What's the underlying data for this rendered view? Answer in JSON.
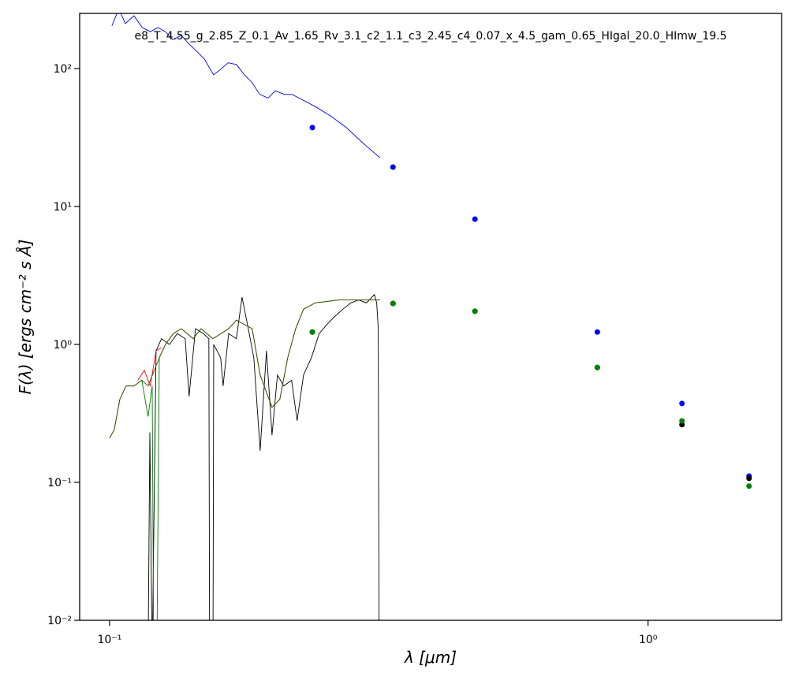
{
  "chart_data": {
    "type": "line",
    "title": "e8_T_4.55_g_2.85_Z_0.1_Av_1.65_Rv_3.1_c2_1.1_c3_2.45_c4_0.07_x_4.5_gam_0.65_HIgal_20.0_HImw_19.5",
    "x_label": "λ [μm]",
    "y_label": "F(λ) [ergs cm⁻² s Å]",
    "xscale": "log",
    "yscale": "log",
    "xlim": [
      0.088,
      1.77
    ],
    "ylim": [
      0.01,
      251
    ],
    "xticks": [
      {
        "value": 0.1,
        "label": "10⁻¹"
      },
      {
        "value": 1,
        "label": "10⁰"
      }
    ],
    "yticks": [
      {
        "value": 0.01,
        "label": "10⁻²"
      },
      {
        "value": 0.1,
        "label": "10⁻¹"
      },
      {
        "value": 1,
        "label": "10⁰"
      },
      {
        "value": 10,
        "label": "10¹"
      },
      {
        "value": 100,
        "label": "10²"
      }
    ],
    "series": [
      {
        "type": "line",
        "color": "#0000ff",
        "x": [
          0.101,
          0.104,
          0.107,
          0.111,
          0.115,
          0.119,
          0.123,
          0.127,
          0.131,
          0.136,
          0.14,
          0.145,
          0.15,
          0.156,
          0.161,
          0.166,
          0.172,
          0.178,
          0.184,
          0.19,
          0.197,
          0.203,
          0.211,
          0.218,
          0.225,
          0.241,
          0.258,
          0.276,
          0.295,
          0.318
        ],
        "values": [
          204,
          270,
          212,
          241,
          198,
          185,
          198,
          185,
          162,
          174,
          152,
          134,
          117,
          90,
          99,
          110,
          107,
          90,
          79,
          65,
          61,
          69,
          65,
          65,
          61,
          53,
          45,
          37,
          29,
          22.5
        ]
      },
      {
        "type": "line",
        "color": "#000000",
        "x": [
          0.1179,
          0.1188,
          0.12,
          0.122,
          0.1249,
          0.1292,
          0.1336,
          0.1382,
          0.1405,
          0.1444,
          0.1493,
          0.1529,
          0.1534,
          0.1556,
          0.1561,
          0.1608,
          0.1625,
          0.1664,
          0.172,
          0.1762,
          0.181,
          0.1853,
          0.1904,
          0.1956,
          0.2003,
          0.205,
          0.2106,
          0.2178,
          0.223,
          0.2292,
          0.237,
          0.2451,
          0.2535,
          0.2622,
          0.2712,
          0.2805,
          0.2901,
          0.3,
          0.3103,
          0.3134,
          0.3155,
          0.3166
        ],
        "values": [
          0.005,
          0.23,
          0.005,
          0.9,
          1.1,
          1.0,
          1.2,
          1.1,
          0.42,
          1.3,
          1.2,
          1.1,
          0.005,
          0.005,
          1.0,
          0.8,
          0.5,
          1.2,
          1.1,
          2.2,
          1.3,
          0.8,
          0.17,
          0.9,
          0.22,
          0.6,
          0.5,
          0.55,
          0.28,
          0.6,
          0.8,
          1.2,
          1.4,
          1.6,
          1.8,
          2.0,
          2.1,
          2.0,
          2.3,
          2.0,
          1.3,
          0.005
        ]
      },
      {
        "type": "line",
        "color": "#ff0000",
        "x": [
          0.1129,
          0.116,
          0.119,
          0.122,
          0.1249
        ],
        "values": [
          0.55,
          0.65,
          0.5,
          0.9,
          0.95
        ]
      },
      {
        "type": "line",
        "color": "#008000",
        "x": [
          0.1,
          0.102,
          0.1045,
          0.1073,
          0.1111,
          0.1148,
          0.1179,
          0.12,
          0.1208,
          0.1224,
          0.1237,
          0.127,
          0.1314,
          0.1359,
          0.143,
          0.1479,
          0.1556,
          0.1664,
          0.172,
          0.184,
          0.1904,
          0.2003,
          0.2071,
          0.2142,
          0.2216,
          0.2292,
          0.241,
          0.2667,
          0.318
        ],
        "values": [
          0.21,
          0.24,
          0.4,
          0.5,
          0.5,
          0.55,
          0.3,
          0.5,
          0.005,
          0.005,
          0.8,
          1.0,
          1.2,
          1.3,
          1.1,
          1.3,
          1.1,
          1.3,
          1.5,
          1.3,
          0.6,
          0.35,
          0.4,
          0.8,
          1.3,
          1.8,
          2.0,
          2.1,
          2.1
        ]
      },
      {
        "type": "line",
        "color": "#3a4a00",
        "x": [
          0.1,
          0.102,
          0.1045,
          0.1073,
          0.1111,
          0.1148,
          0.1179,
          0.1237,
          0.127,
          0.1314,
          0.1359,
          0.143,
          0.1479,
          0.1556,
          0.1664,
          0.172,
          0.184,
          0.1904,
          0.2003,
          0.2071,
          0.2142,
          0.2216,
          0.2292,
          0.241,
          0.2667,
          0.318
        ],
        "values": [
          0.21,
          0.24,
          0.4,
          0.5,
          0.5,
          0.55,
          0.5,
          0.8,
          1.0,
          1.2,
          1.3,
          1.1,
          1.3,
          1.1,
          1.3,
          1.5,
          1.3,
          0.6,
          0.35,
          0.4,
          0.8,
          1.3,
          1.8,
          2.0,
          2.1,
          2.1
        ]
      },
      {
        "type": "scatter",
        "color": "#0000ff",
        "x": [
          0.238,
          0.336,
          0.477,
          0.805,
          1.156,
          1.54
        ],
        "values": [
          37.3,
          19.3,
          8.1,
          1.23,
          0.373,
          0.111
        ]
      },
      {
        "type": "scatter",
        "color": "#000000",
        "x": [
          0.238,
          0.336,
          0.477,
          0.805,
          1.156,
          1.54
        ],
        "values": [
          1.23,
          1.98,
          1.74,
          0.68,
          0.262,
          0.107
        ]
      },
      {
        "type": "scatter",
        "color": "#008000",
        "x": [
          0.238,
          0.336,
          0.477,
          0.805,
          1.156,
          1.54
        ],
        "values": [
          1.23,
          1.98,
          1.74,
          0.68,
          0.279,
          0.094
        ]
      }
    ]
  }
}
